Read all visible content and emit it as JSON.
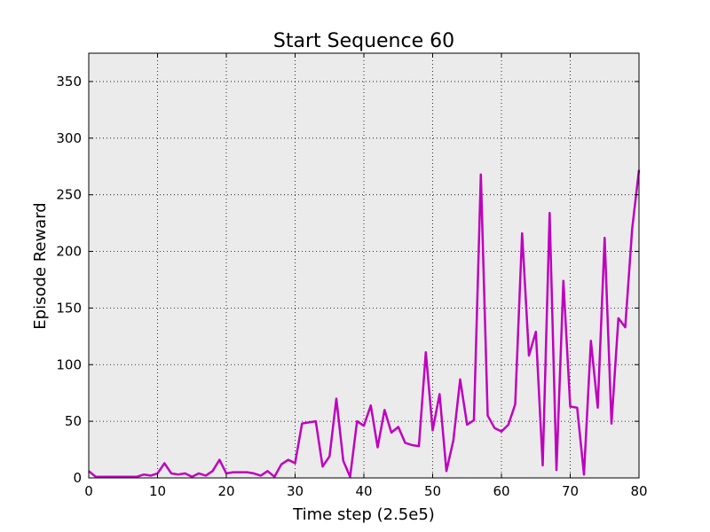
{
  "colors": {
    "plot_background": "#ebebeb",
    "series_line": "#bf00bf",
    "grid": "#000000",
    "frame": "#000000"
  },
  "chart_data": {
    "type": "line",
    "title": "Start Sequence 60",
    "xlabel": "Time step (2.5e5)",
    "ylabel": "Episode Reward",
    "xlim": [
      0,
      80
    ],
    "ylim": [
      0,
      375
    ],
    "xticks": [
      0,
      10,
      20,
      30,
      40,
      50,
      60,
      70,
      80
    ],
    "yticks": [
      0,
      50,
      100,
      150,
      200,
      250,
      300,
      350
    ],
    "grid": true,
    "grid_style": "dotted",
    "legend": "none",
    "series": [
      {
        "x": [
          0,
          1,
          2,
          3,
          4,
          5,
          6,
          7,
          8,
          9,
          10,
          11,
          12,
          13,
          14,
          15,
          16,
          17,
          18,
          19,
          20,
          21,
          22,
          23,
          24,
          25,
          26,
          27,
          28,
          29,
          30,
          31,
          32,
          33,
          34,
          35,
          36,
          37,
          38,
          39,
          40,
          41,
          42,
          43,
          44,
          45,
          46,
          47,
          48,
          49,
          50,
          51,
          52,
          53,
          54,
          55,
          56,
          57,
          58,
          59,
          60,
          61,
          62,
          63,
          64,
          65,
          66,
          67,
          68,
          69,
          70,
          71,
          72,
          73,
          74,
          75,
          76,
          77,
          78,
          79,
          80
        ],
        "y": [
          6,
          1,
          1,
          1,
          1,
          1,
          1,
          1,
          3,
          2,
          4,
          13,
          4,
          3,
          4,
          1,
          4,
          2,
          6,
          16,
          4,
          5,
          5,
          5,
          4,
          2,
          6,
          1,
          12,
          16,
          13,
          48,
          49,
          50,
          10,
          19,
          70,
          15,
          1,
          50,
          46,
          64,
          27,
          60,
          40,
          45,
          31,
          29,
          28,
          111,
          42,
          74,
          6,
          33,
          87,
          47,
          51,
          268,
          55,
          44,
          41,
          47,
          65,
          216,
          108,
          129,
          11,
          234,
          7,
          174,
          63,
          62,
          3,
          121,
          62,
          212,
          48,
          141,
          133,
          220,
          272
        ]
      }
    ]
  }
}
